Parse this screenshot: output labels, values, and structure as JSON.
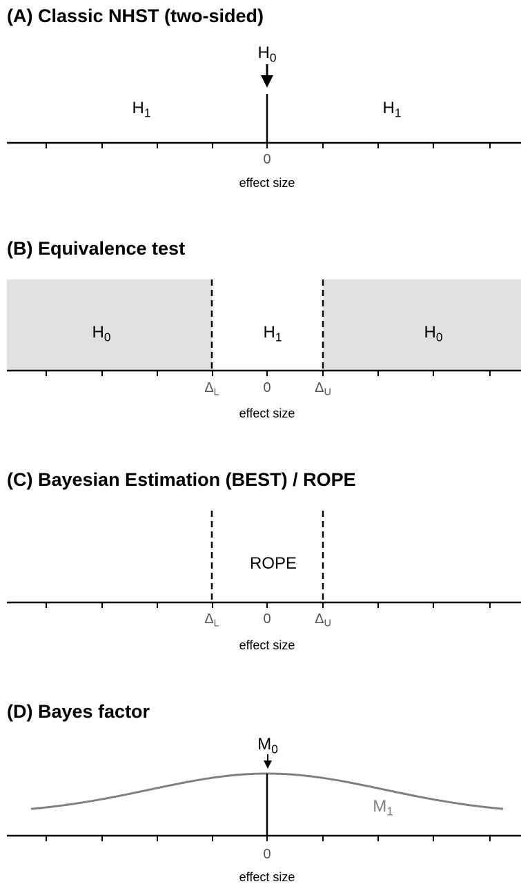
{
  "panels": [
    {
      "title": "(A) Classic NHST (two-sided)",
      "labels": [
        {
          "main": "H",
          "sub": "0"
        },
        {
          "main": "H",
          "sub": "1"
        },
        {
          "main": "H",
          "sub": "1"
        }
      ],
      "tick_labels": [
        {
          "main": "0"
        }
      ],
      "axis_label": "effect size"
    },
    {
      "title": "(B) Equivalence test",
      "labels": [
        {
          "main": "H",
          "sub": "0"
        },
        {
          "main": "H",
          "sub": "1"
        },
        {
          "main": "H",
          "sub": "0"
        }
      ],
      "tick_labels": [
        {
          "main": "Δ",
          "sub": "L"
        },
        {
          "main": "0"
        },
        {
          "main": "Δ",
          "sub": "U"
        }
      ],
      "axis_label": "effect size"
    },
    {
      "title": "(C) Bayesian Estimation (BEST) / ROPE",
      "labels": [
        {
          "main": "ROPE"
        }
      ],
      "tick_labels": [
        {
          "main": "Δ",
          "sub": "L"
        },
        {
          "main": "0"
        },
        {
          "main": "Δ",
          "sub": "U"
        }
      ],
      "axis_label": "effect size"
    },
    {
      "title": "(D) Bayes factor",
      "labels": [
        {
          "main": "M",
          "sub": "0"
        },
        {
          "main": "M",
          "sub": "1"
        }
      ],
      "tick_labels": [
        {
          "main": "0"
        }
      ],
      "axis_label": "effect size"
    }
  ]
}
